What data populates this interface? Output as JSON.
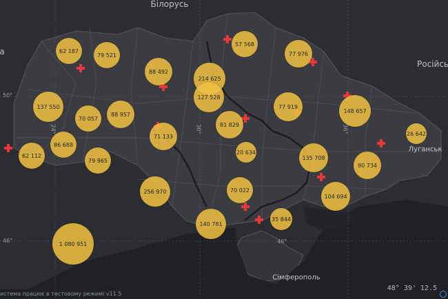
{
  "map": {
    "place_labels": [
      {
        "id": "belarus",
        "text": "Білорусь"
      },
      {
        "id": "russia",
        "text": "Російсь"
      },
      {
        "id": "luhansk",
        "text": "Луганськ"
      },
      {
        "id": "simferopol",
        "text": "Сімферополь"
      },
      {
        "id": "left-edge",
        "text": "а"
      }
    ],
    "grid_labels": [
      {
        "id": "lat50",
        "text": "50°"
      },
      {
        "id": "lat46l",
        "text": "46°"
      },
      {
        "id": "lat46m",
        "text": "46°"
      },
      {
        "id": "lon24",
        "text": "24°"
      },
      {
        "id": "lon30",
        "text": "30°"
      },
      {
        "id": "lon36",
        "text": "36°"
      }
    ],
    "clusters": [
      {
        "id": "c1",
        "label": "62 187",
        "value": 62187
      },
      {
        "id": "c2",
        "label": "79 521",
        "value": 79521
      },
      {
        "id": "c3",
        "label": "88 492",
        "value": 88492
      },
      {
        "id": "c4",
        "label": "214 625",
        "value": 214625
      },
      {
        "id": "c5",
        "label": "57 568",
        "value": 57568
      },
      {
        "id": "c6",
        "label": "77 976",
        "value": 77976
      },
      {
        "id": "c7",
        "label": "137 550",
        "value": 137550
      },
      {
        "id": "c8",
        "label": "70 057",
        "value": 70057
      },
      {
        "id": "c9",
        "label": "88 957",
        "value": 88957
      },
      {
        "id": "c10",
        "label": "127 528",
        "value": 127528
      },
      {
        "id": "c11",
        "label": "77 919",
        "value": 77919
      },
      {
        "id": "c12",
        "label": "148 657",
        "value": 148657
      },
      {
        "id": "c13",
        "label": "86 688",
        "value": 86688
      },
      {
        "id": "c14",
        "label": "71 133",
        "value": 71133
      },
      {
        "id": "c15",
        "label": "81 829",
        "value": 81829
      },
      {
        "id": "c16",
        "label": "62 112",
        "value": 62112
      },
      {
        "id": "c17",
        "label": "79 965",
        "value": 79965
      },
      {
        "id": "c18",
        "label": "20 634",
        "value": 20634
      },
      {
        "id": "c19",
        "label": "135 708",
        "value": 135708
      },
      {
        "id": "c20",
        "label": "26 642",
        "value": 26642
      },
      {
        "id": "c21",
        "label": "90 734",
        "value": 90734
      },
      {
        "id": "c22",
        "label": "256 970",
        "value": 256970
      },
      {
        "id": "c23",
        "label": "70 022",
        "value": 70022
      },
      {
        "id": "c24",
        "label": "104 694",
        "value": 104694
      },
      {
        "id": "c25",
        "label": "140 781",
        "value": 140781
      },
      {
        "id": "c26",
        "label": "35 844",
        "value": 35844
      },
      {
        "id": "c27",
        "label": "1 080 951",
        "value": 1080951
      }
    ],
    "footer_text": "истема працює в тестовому режимі v11.5",
    "coordinates_text": "48° 39' 12.5",
    "colors": {
      "background": "#2b2c30",
      "land": "#3a3b40",
      "sea": "#1d1f24",
      "bubble": "#f0c040",
      "marker": "#e8383d"
    }
  }
}
